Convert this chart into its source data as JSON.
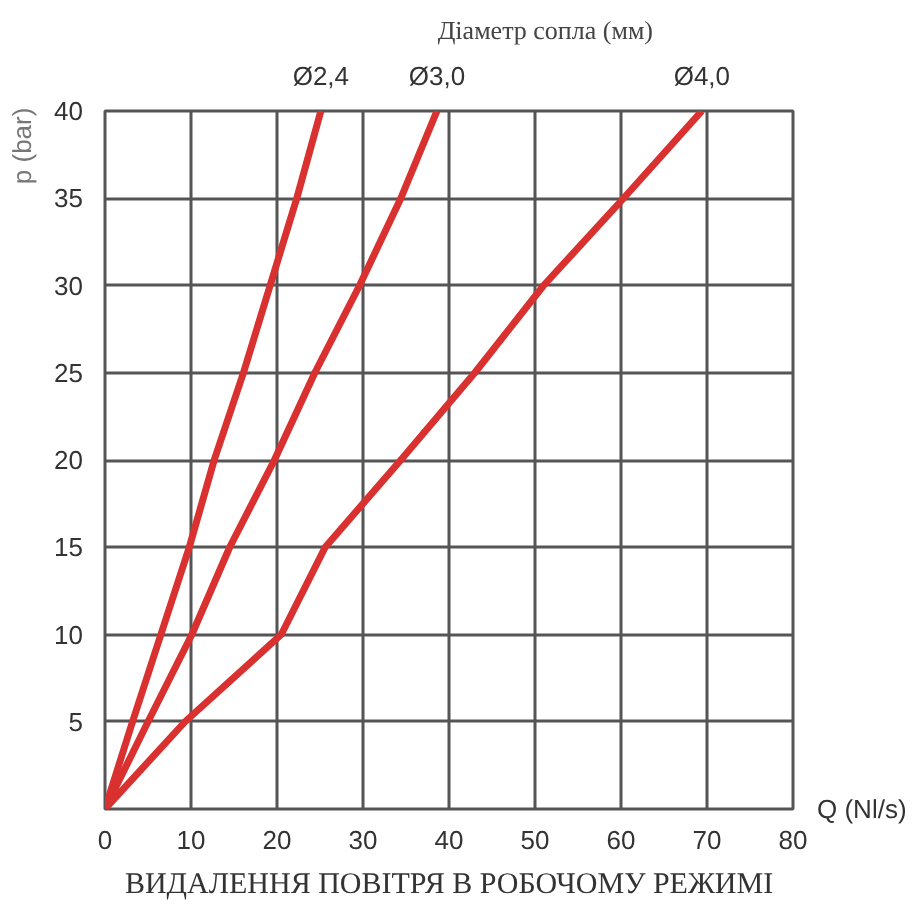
{
  "chart_data": {
    "type": "line",
    "title": "ВИДАЛЕННЯ ПОВІТРЯ В РОБОЧОМУ РЕЖИМІ",
    "legend_title": "Діаметр сопла (мм)",
    "xlabel": "Q (Nl/s)",
    "ylabel": "p (bar)",
    "xlim": [
      0,
      80
    ],
    "ylim": [
      0,
      40
    ],
    "xticks": [
      0,
      10,
      20,
      30,
      40,
      50,
      60,
      70,
      80
    ],
    "yticks": [
      {
        "value": 0,
        "label": null
      },
      5,
      10,
      15,
      20,
      25,
      30,
      35,
      40
    ],
    "grid": true,
    "line_style": "solid",
    "series": [
      {
        "name": "Ø2,4",
        "color": "#d93030",
        "x": [
          0,
          3.2,
          6.5,
          9.8,
          12.7,
          16.1,
          19.2,
          22.3,
          25.1
        ],
        "values": [
          0,
          5,
          10,
          15,
          20,
          25,
          30,
          35,
          40
        ]
      },
      {
        "name": "Ø3,0",
        "color": "#d93030",
        "x": [
          0,
          5,
          10.1,
          14.5,
          19.7,
          24.4,
          29.6,
          34.4,
          38.6
        ],
        "values": [
          0,
          5,
          10,
          15,
          20,
          25,
          30,
          35,
          40
        ]
      },
      {
        "name": "Ø4,0",
        "color": "#d93030",
        "x": [
          0,
          9.3,
          20.5,
          25.6,
          34.4,
          43,
          51,
          60.3,
          69.4
        ],
        "values": [
          0,
          5,
          10,
          15,
          20,
          25,
          30,
          35,
          40
        ]
      }
    ]
  }
}
